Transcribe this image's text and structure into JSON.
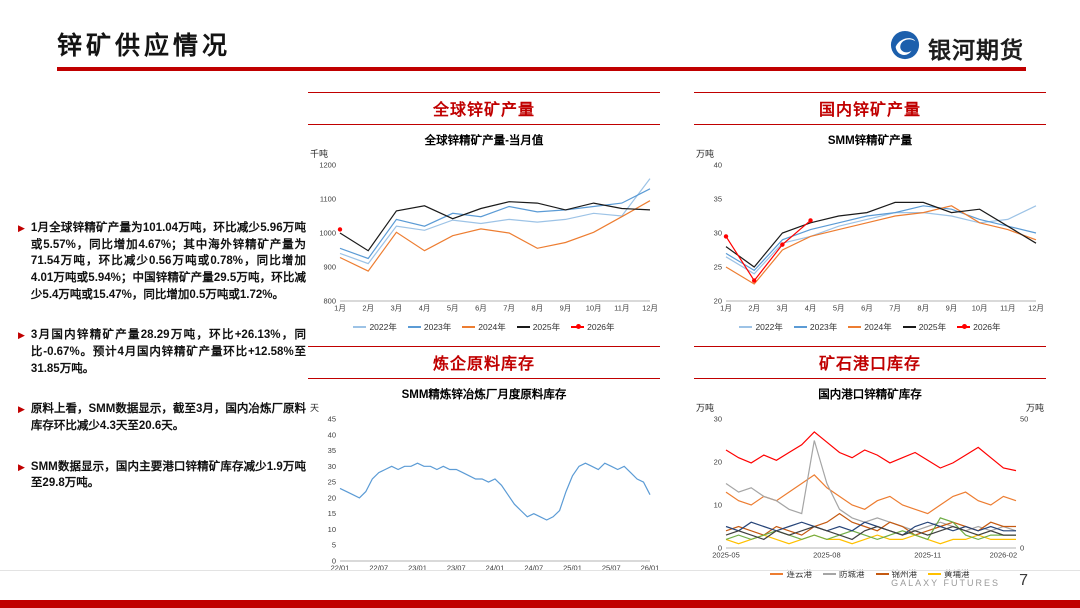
{
  "page": {
    "title": "锌矿供应情况",
    "logo_text": "银河期货"
  },
  "colors": {
    "accent_red": "#C00000",
    "brand_blue": "#1C5FAC"
  },
  "bullets": [
    "1月全球锌精矿产量为101.04万吨，环比减少5.96万吨或5.57%，同比增加4.67%；其中海外锌精矿产量为71.54万吨，环比减少0.56万吨或0.78%，同比增加4.01万吨或5.94%；中国锌精矿产量29.5万吨，环比减少5.4万吨或15.47%，同比增加0.5万吨或1.72%。",
    "3月国内锌精矿产量28.29万吨，环比+26.13%，同比-0.67%。预计4月国内锌精矿产量环比+12.58%至31.85万吨。",
    "原料上看，SMM数据显示，截至3月，国内冶炼厂原料库存环比减少4.3天至20.6天。",
    "SMM数据显示，国内主要港口锌精矿库存减少1.9万吨至29.8万吨。"
  ],
  "sections": [
    {
      "title": "全球锌矿产量"
    },
    {
      "title": "国内锌矿产量"
    },
    {
      "title": "炼企原料库存"
    },
    {
      "title": "矿石港口库存"
    }
  ],
  "footer": {
    "brand": "GALAXY FUTURES",
    "page_number": "7"
  },
  "chart_data": [
    {
      "type": "line",
      "title": "全球锌精矿产量-当月值",
      "unit_left": "千吨",
      "ylim": [
        800,
        1200
      ],
      "yticks": [
        800,
        900,
        1000,
        1100,
        1200
      ],
      "grid": false,
      "legend_position": "bottom",
      "categories": [
        "1月",
        "2月",
        "3月",
        "4月",
        "5月",
        "6月",
        "7月",
        "8月",
        "9月",
        "10月",
        "11月",
        "12月"
      ],
      "series": [
        {
          "name": "2022年",
          "color": "#9DC3E6",
          "values": [
            940,
            910,
            1020,
            1008,
            1038,
            1028,
            1040,
            1032,
            1040,
            1058,
            1050,
            1160
          ]
        },
        {
          "name": "2023年",
          "color": "#5B9BD5",
          "values": [
            955,
            925,
            1040,
            1020,
            1058,
            1048,
            1078,
            1062,
            1068,
            1078,
            1088,
            1130
          ]
        },
        {
          "name": "2024年",
          "color": "#ED7D31",
          "values": [
            928,
            888,
            1002,
            948,
            992,
            1012,
            1000,
            955,
            972,
            1002,
            1048,
            1095
          ]
        },
        {
          "name": "2025年",
          "color": "#1A1A1A",
          "values": [
            1000,
            948,
            1065,
            1080,
            1042,
            1072,
            1092,
            1088,
            1068,
            1088,
            1072,
            1068
          ]
        },
        {
          "name": "2026年",
          "color": "#FF0000",
          "marker": true,
          "values": [
            1010.4
          ]
        }
      ]
    },
    {
      "type": "line",
      "title": "SMM锌精矿产量",
      "unit_left": "万吨",
      "ylim": [
        20,
        40
      ],
      "yticks": [
        20,
        25,
        30,
        35,
        40
      ],
      "grid": false,
      "legend_position": "bottom",
      "categories": [
        "1月",
        "2月",
        "3月",
        "4月",
        "5月",
        "6月",
        "7月",
        "8月",
        "9月",
        "10月",
        "11月",
        "12月"
      ],
      "series": [
        {
          "name": "2022年",
          "color": "#9DC3E6",
          "values": [
            26.5,
            24,
            28.5,
            29.5,
            31,
            32,
            33,
            33,
            32.5,
            31.5,
            32,
            34
          ]
        },
        {
          "name": "2023年",
          "color": "#5B9BD5",
          "values": [
            27,
            24.5,
            29,
            30.5,
            31.5,
            32.5,
            33,
            34,
            33.5,
            32,
            31,
            30
          ]
        },
        {
          "name": "2024年",
          "color": "#ED7D31",
          "values": [
            25,
            22.5,
            27.5,
            29.5,
            30.5,
            31.5,
            32.5,
            33,
            34,
            31.5,
            30.5,
            29
          ]
        },
        {
          "name": "2025年",
          "color": "#1A1A1A",
          "values": [
            28,
            25,
            30,
            31.5,
            32.5,
            33,
            34.5,
            34.5,
            33,
            33.5,
            31,
            28.5
          ]
        },
        {
          "name": "2026年",
          "color": "#FF0000",
          "marker": true,
          "values": [
            29.5,
            23,
            28.29,
            31.85
          ]
        }
      ]
    },
    {
      "type": "line",
      "title": "SMM精炼锌冶炼厂月度原料库存",
      "unit_left": "天",
      "ylim": [
        0,
        45
      ],
      "yticks": [
        0,
        5,
        10,
        15,
        20,
        25,
        30,
        35,
        40,
        45
      ],
      "grid": false,
      "x_count": 49,
      "xlabels": [
        {
          "i": 0,
          "t": "22/01"
        },
        {
          "i": 6,
          "t": "22/07"
        },
        {
          "i": 12,
          "t": "23/01"
        },
        {
          "i": 18,
          "t": "23/07"
        },
        {
          "i": 24,
          "t": "24/01"
        },
        {
          "i": 30,
          "t": "24/07"
        },
        {
          "i": 36,
          "t": "25/01"
        },
        {
          "i": 42,
          "t": "25/07"
        },
        {
          "i": 48,
          "t": "26/01"
        }
      ],
      "series": [
        {
          "name": "冶炼厂原料库存",
          "color": "#5B9BD5",
          "legend": false,
          "values": [
            23,
            22,
            21,
            20,
            22,
            26,
            28,
            29,
            30,
            29,
            30,
            30,
            31,
            30,
            30,
            29,
            30,
            29,
            29,
            28,
            27,
            26,
            26,
            25,
            26,
            24,
            21,
            18,
            16,
            14,
            15,
            14,
            13,
            14,
            16,
            22,
            27,
            30,
            31,
            30,
            29,
            31,
            30,
            29,
            30,
            28,
            26,
            25,
            21
          ]
        }
      ]
    },
    {
      "type": "line",
      "title": "国内港口锌精矿库存",
      "unit_left": "万吨",
      "unit_right": "万吨",
      "ylim": [
        0,
        30
      ],
      "yticks": [
        0,
        10,
        20,
        30
      ],
      "ylim_right": [
        0,
        50
      ],
      "yticks_right": [
        0,
        50
      ],
      "grid": false,
      "legend_position": "bottom",
      "x_count": 24,
      "xlabels": [
        {
          "i": 0,
          "t": "2025-05"
        },
        {
          "i": 8,
          "t": "2025-08"
        },
        {
          "i": 16,
          "t": "2025-11"
        },
        {
          "i": 22,
          "t": "2026-02"
        }
      ],
      "series": [
        {
          "name": "连云港",
          "color": "#ED7D31",
          "values": [
            13,
            11,
            10,
            12,
            11,
            13,
            15,
            17,
            14,
            12,
            10,
            9,
            11,
            12,
            10,
            9,
            8,
            10,
            12,
            13,
            11,
            10,
            12,
            11
          ]
        },
        {
          "name": "防城港",
          "color": "#A5A5A5",
          "values": [
            15,
            13,
            14,
            12,
            11,
            9,
            8,
            25,
            15,
            9,
            7,
            6,
            7,
            6,
            5,
            4,
            5,
            6,
            5,
            4,
            5,
            4,
            5,
            4
          ]
        },
        {
          "name": "锦州港",
          "color": "#C55A11",
          "values": [
            4,
            5,
            4,
            3,
            5,
            4,
            3,
            5,
            6,
            8,
            6,
            5,
            4,
            6,
            5,
            3,
            4,
            5,
            6,
            5,
            4,
            6,
            5,
            5
          ]
        },
        {
          "name": "黄埔港",
          "color": "#FFC000",
          "values": [
            2,
            1,
            2,
            3,
            2,
            1,
            2,
            3,
            2,
            2,
            1,
            2,
            3,
            2,
            2,
            3,
            2,
            1,
            2,
            2,
            3,
            2,
            2,
            2
          ]
        },
        {
          "name": "red-line-right-axis",
          "color": "#FF0000",
          "axis": "right",
          "legend": false,
          "values": [
            38,
            35,
            33,
            36,
            34,
            37,
            40,
            45,
            41,
            37,
            35,
            38,
            36,
            33,
            35,
            37,
            34,
            31,
            33,
            36,
            39,
            35,
            31,
            30
          ]
        },
        {
          "name": "green-line",
          "color": "#70AD47",
          "legend": false,
          "values": [
            2,
            3,
            2,
            3,
            4,
            3,
            2,
            3,
            2,
            3,
            4,
            3,
            2,
            3,
            4,
            3,
            2,
            7,
            6,
            3,
            2,
            3,
            3,
            3
          ]
        },
        {
          "name": "navy-line",
          "color": "#264478",
          "legend": false,
          "values": [
            5,
            4,
            6,
            5,
            4,
            5,
            6,
            5,
            4,
            5,
            4,
            6,
            5,
            4,
            3,
            5,
            6,
            5,
            4,
            5,
            4,
            5,
            4,
            4
          ]
        },
        {
          "name": "dark-line",
          "color": "#404040",
          "legend": false,
          "values": [
            3,
            4,
            3,
            2,
            4,
            3,
            4,
            5,
            4,
            3,
            2,
            4,
            5,
            4,
            3,
            4,
            3,
            4,
            5,
            4,
            3,
            4,
            3,
            3
          ]
        }
      ]
    }
  ]
}
